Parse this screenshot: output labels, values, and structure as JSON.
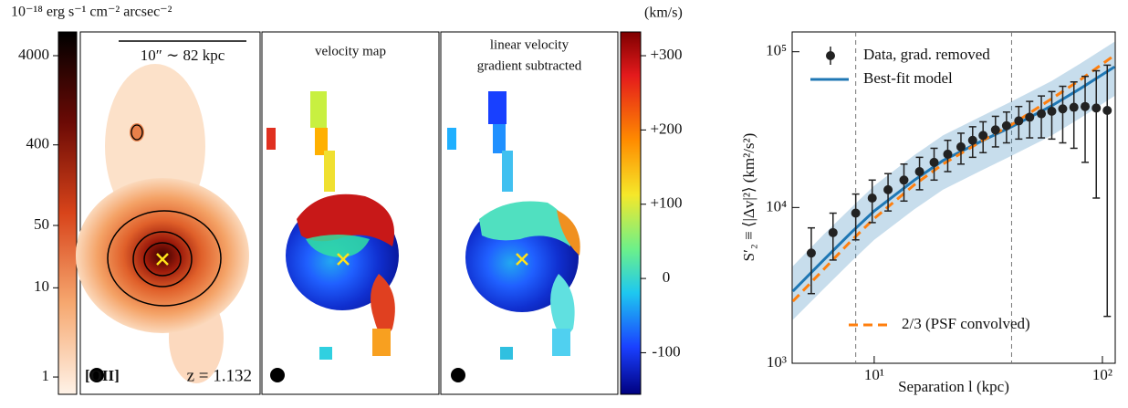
{
  "maps": {
    "intensity_colorbar": {
      "label": "10⁻¹⁸ erg s⁻¹ cm⁻² arcsec⁻²",
      "log": true,
      "lim": [
        0.64,
        7380
      ],
      "ticks": [
        1,
        10,
        50,
        400,
        4000
      ]
    },
    "velocity_colorbar": {
      "label": "(km/s)",
      "lim": [
        -156,
        332
      ],
      "ticks": [
        {
          "value": 300,
          "label": "+300"
        },
        {
          "value": 200,
          "label": "+200"
        },
        {
          "value": 100,
          "label": "+100"
        },
        0,
        -100
      ]
    },
    "panels": [
      {
        "scale_bar": "10″ ∼ 82 kpc",
        "line_label": "[OII]",
        "redshift": "z = 1.132"
      },
      {
        "title": "velocity map"
      },
      {
        "title_lines": [
          "linear velocity",
          "gradient subtracted"
        ]
      }
    ]
  },
  "chart_data": {
    "type": "line",
    "xlabel": "Separation l (kpc)",
    "ylabel": "S′₂ ≡ ⟨|Δv|²⟩ (km²/s²)",
    "xlog": true,
    "ylog": true,
    "xlim": [
      4.37,
      113.8
    ],
    "ylim": [
      1000,
      134000
    ],
    "xticks": [
      {
        "value": 10,
        "label": "10¹"
      },
      {
        "value": 100,
        "label": "10²"
      }
    ],
    "yticks": [
      {
        "value": 1000,
        "label": "10³"
      },
      {
        "value": 10000,
        "label": "10⁴"
      },
      {
        "value": 100000,
        "label": "10⁵"
      }
    ],
    "vlines": [
      8.3,
      40
    ],
    "series": [
      {
        "name": "Data, grad. removed",
        "color": "#222222",
        "kind": "errorbar",
        "legend": "upper left",
        "x": [
          5.3,
          6.6,
          8.3,
          9.8,
          11.5,
          13.5,
          15.8,
          18.3,
          21,
          24,
          27,
          30,
          34,
          38,
          43,
          48,
          54,
          60,
          67,
          75,
          84,
          94,
          105
        ],
        "values": [
          5100,
          6900,
          9200,
          11500,
          13000,
          15000,
          17000,
          19500,
          22000,
          24500,
          27000,
          29000,
          31500,
          33500,
          36000,
          38000,
          40000,
          41500,
          43000,
          44000,
          44500,
          43500,
          42000
        ],
        "errors": [
          2300,
          2300,
          3000,
          3500,
          3500,
          4000,
          4000,
          4500,
          5000,
          5500,
          6000,
          6500,
          7000,
          7500,
          8500,
          10000,
          12000,
          14000,
          17000,
          20000,
          25000,
          32000,
          40000
        ]
      },
      {
        "name": "Best-fit model",
        "color": "#1f77b4",
        "kind": "line",
        "legend": "upper left",
        "x": [
          4.4,
          6,
          8,
          10,
          15,
          20,
          30,
          40,
          60,
          80,
          113
        ],
        "values": [
          2900,
          4600,
          7000,
          9500,
          15000,
          20000,
          27000,
          33000,
          45000,
          58000,
          80000
        ],
        "band_lower": [
          1900,
          3000,
          4550,
          6200,
          9750,
          13000,
          17500,
          21500,
          29000,
          37500,
          52000
        ],
        "band_upper": [
          4200,
          6700,
          10100,
          13800,
          21700,
          29000,
          39000,
          48000,
          65000,
          84000,
          116000
        ]
      },
      {
        "name": "2/3 (PSF convolved)",
        "color": "#ff7f0e",
        "kind": "line",
        "dashed": true,
        "legend": "lower right",
        "x": [
          4.4,
          6,
          8,
          10,
          15,
          20,
          30,
          40,
          60,
          80,
          113
        ],
        "values": [
          2500,
          4000,
          6200,
          8500,
          14000,
          19000,
          27000,
          34000,
          50000,
          66000,
          95000
        ]
      }
    ]
  }
}
